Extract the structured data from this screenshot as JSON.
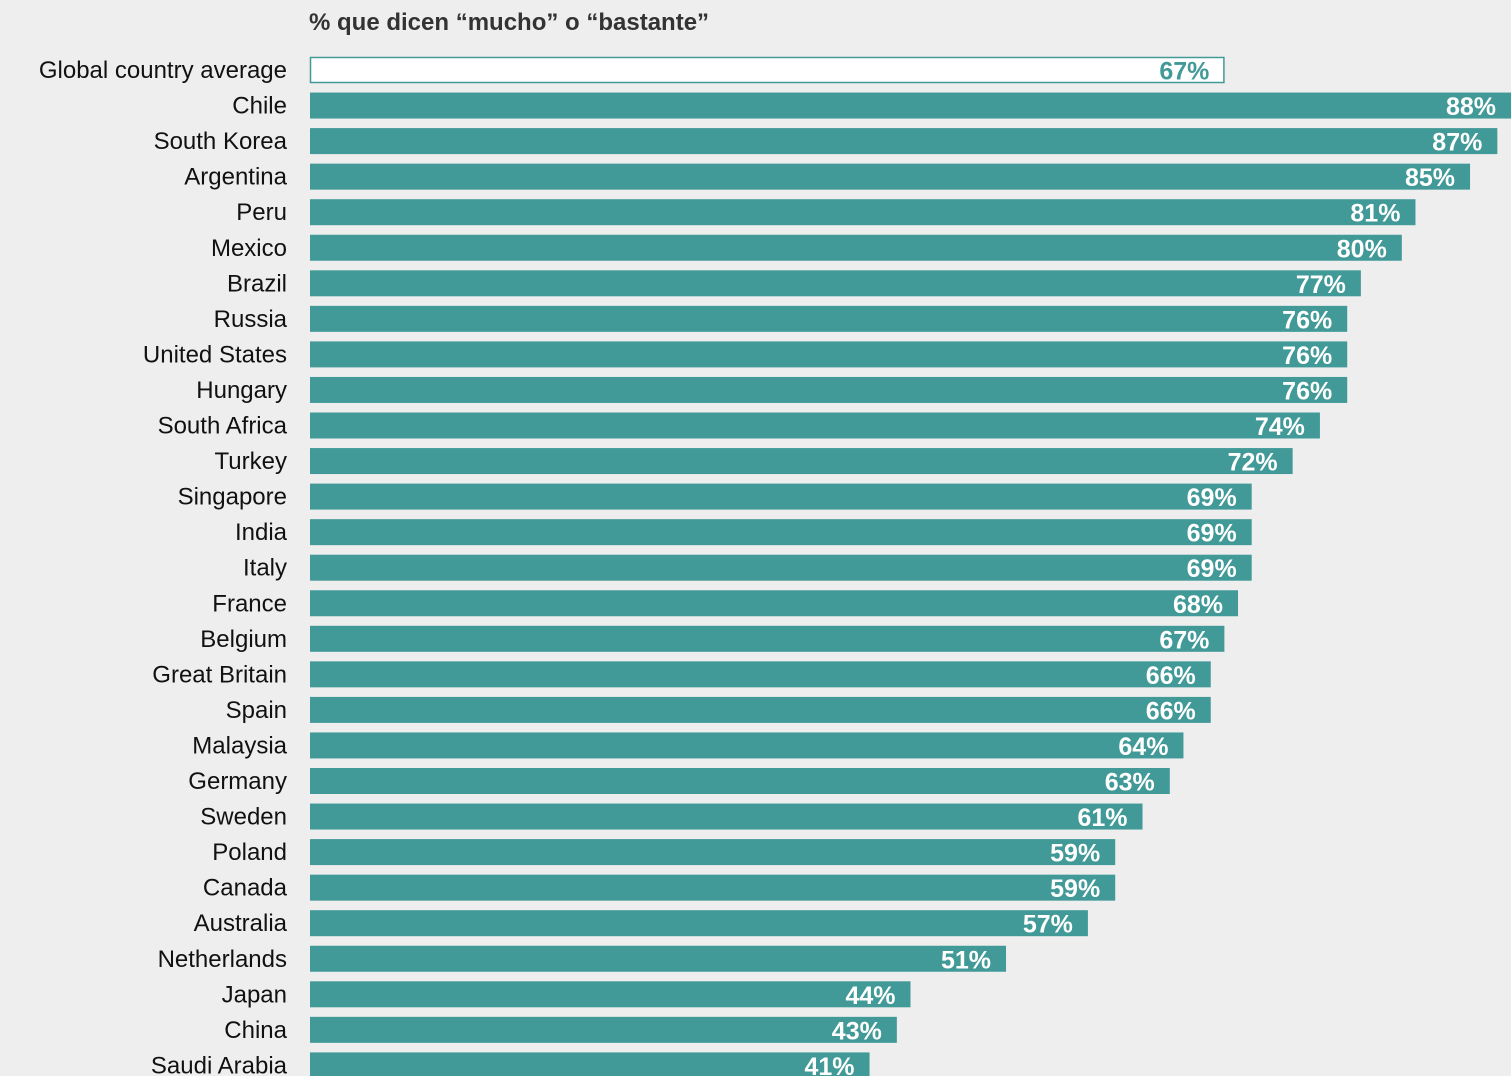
{
  "chart_data": {
    "type": "bar",
    "orientation": "horizontal",
    "title": "% que dicen “mucho” o “bastante”",
    "categories": [
      "Global country average",
      "Chile",
      "South Korea",
      "Argentina",
      "Peru",
      "Mexico",
      "Brazil",
      "Russia",
      "United States",
      "Hungary",
      "South Africa",
      "Turkey",
      "Singapore",
      "India",
      "Italy",
      "France",
      "Belgium",
      "Great Britain",
      "Spain",
      "Malaysia",
      "Germany",
      "Sweden",
      "Poland",
      "Canada",
      "Australia",
      "Netherlands",
      "Japan",
      "China",
      "Saudi Arabia"
    ],
    "values": [
      67,
      88,
      87,
      85,
      81,
      80,
      77,
      76,
      76,
      76,
      74,
      72,
      69,
      69,
      69,
      68,
      67,
      66,
      66,
      64,
      63,
      61,
      59,
      59,
      57,
      51,
      44,
      43,
      41
    ],
    "value_labels": [
      "67%",
      "88%",
      "87%",
      "85%",
      "81%",
      "80%",
      "77%",
      "76%",
      "76%",
      "76%",
      "74%",
      "72%",
      "69%",
      "69%",
      "69%",
      "68%",
      "67%",
      "66%",
      "66%",
      "64%",
      "63%",
      "61%",
      "59%",
      "59%",
      "57%",
      "51%",
      "44%",
      "43%",
      "41%"
    ],
    "highlight_index": 0,
    "xlim": [
      0,
      88
    ],
    "grid": false,
    "legend": "none",
    "colors": {
      "bar": "#429a98",
      "highlight_fill": "#ffffff",
      "highlight_stroke": "#429a98",
      "value_label": "#ffffff",
      "highlight_label": "#429a98",
      "category_label": "#111111",
      "background": "#eeeeee"
    }
  }
}
